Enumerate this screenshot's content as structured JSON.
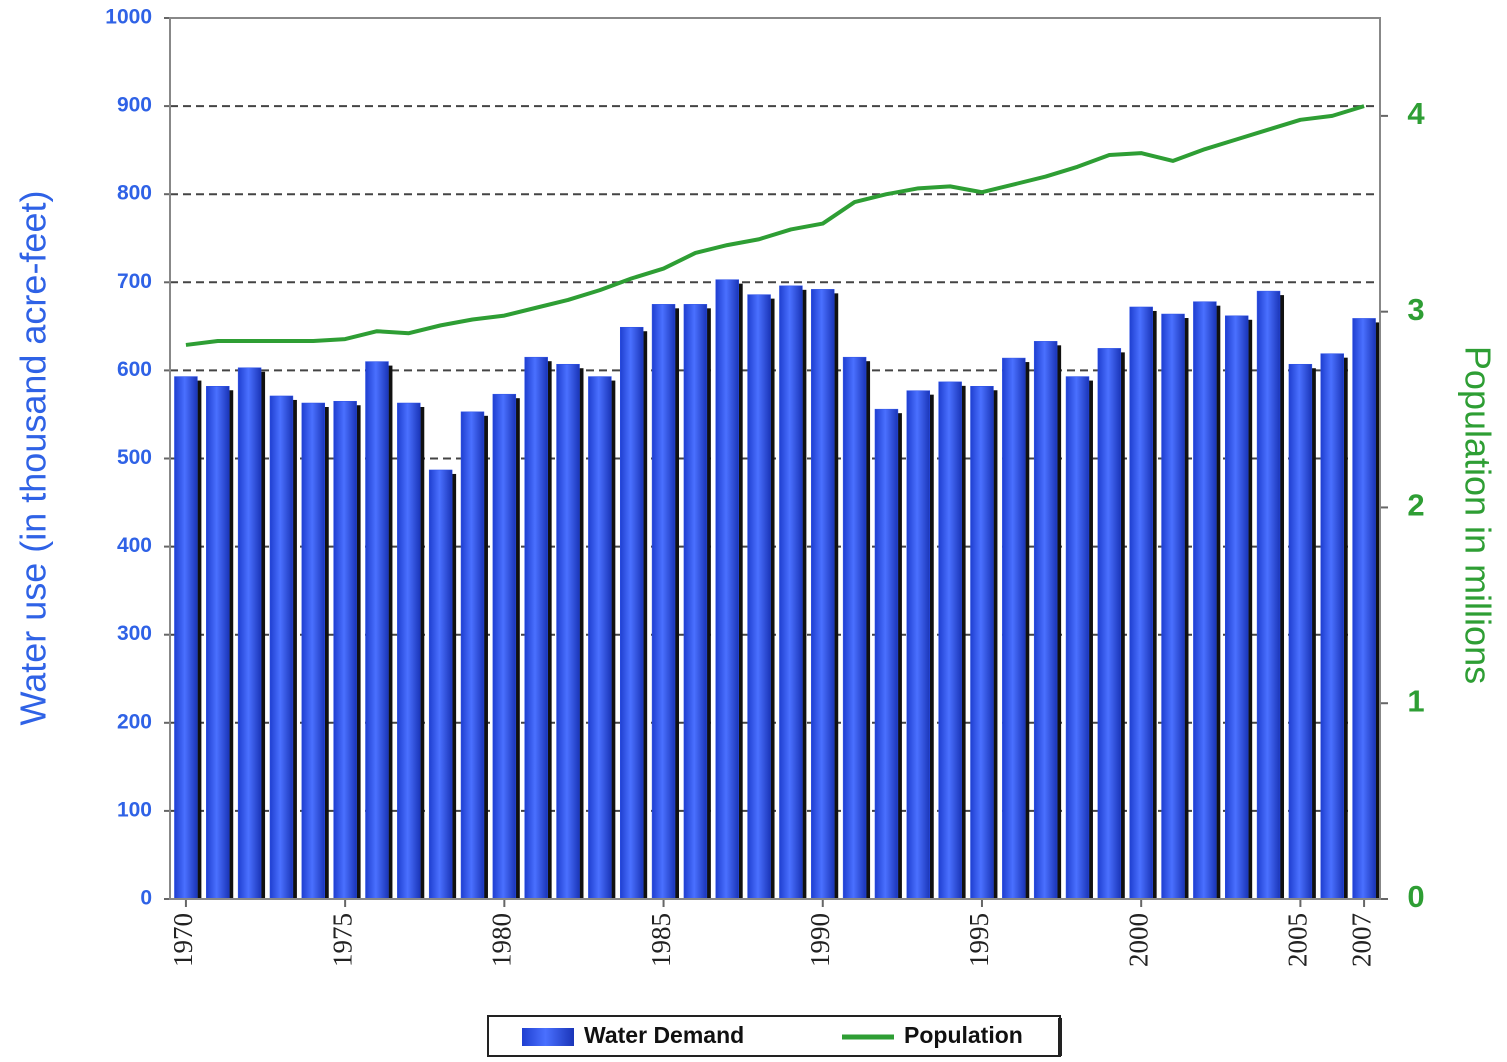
{
  "chart_data": {
    "type": "bar",
    "ylabel": "Water use (in thousand acre-feet)",
    "y2label": "Population in millions",
    "x": [
      1970,
      1971,
      1972,
      1973,
      1974,
      1975,
      1976,
      1977,
      1978,
      1979,
      1980,
      1981,
      1982,
      1983,
      1984,
      1985,
      1986,
      1987,
      1988,
      1989,
      1990,
      1991,
      1992,
      1993,
      1994,
      1995,
      1996,
      1997,
      1998,
      1999,
      2000,
      2001,
      2002,
      2003,
      2004,
      2005,
      2006,
      2007
    ],
    "xlim": [
      1969.5,
      2007.5
    ],
    "xticks": [
      1970,
      1975,
      1980,
      1985,
      1990,
      1995,
      2000,
      2005,
      2007
    ],
    "ylim": [
      0,
      1000
    ],
    "yticks": [
      0,
      100,
      200,
      300,
      400,
      500,
      600,
      700,
      800,
      900,
      1000
    ],
    "y2lim": [
      0,
      4.5
    ],
    "y2ticks": [
      0,
      1,
      2,
      3,
      4
    ],
    "grid": true,
    "legend": "bottom",
    "series": [
      {
        "name": "Water Demand",
        "type": "bar",
        "color": "#2b4fe6",
        "values": [
          593,
          582,
          603,
          571,
          563,
          565,
          610,
          563,
          487,
          553,
          573,
          615,
          607,
          593,
          649,
          675,
          675,
          703,
          686,
          696,
          692,
          615,
          556,
          577,
          587,
          582,
          614,
          633,
          593,
          625,
          672,
          664,
          678,
          662,
          690,
          607,
          619,
          659
        ]
      },
      {
        "name": "Population",
        "type": "line",
        "axis": "y2",
        "color": "#2e9e34",
        "values": [
          2.83,
          2.85,
          2.85,
          2.85,
          2.85,
          2.86,
          2.9,
          2.89,
          2.93,
          2.96,
          2.98,
          3.02,
          3.06,
          3.11,
          3.17,
          3.22,
          3.3,
          3.34,
          3.37,
          3.42,
          3.45,
          3.56,
          3.6,
          3.63,
          3.64,
          3.61,
          3.65,
          3.69,
          3.74,
          3.8,
          3.81,
          3.77,
          3.83,
          3.88,
          3.93,
          3.98,
          4.0,
          4.05
        ]
      }
    ]
  }
}
